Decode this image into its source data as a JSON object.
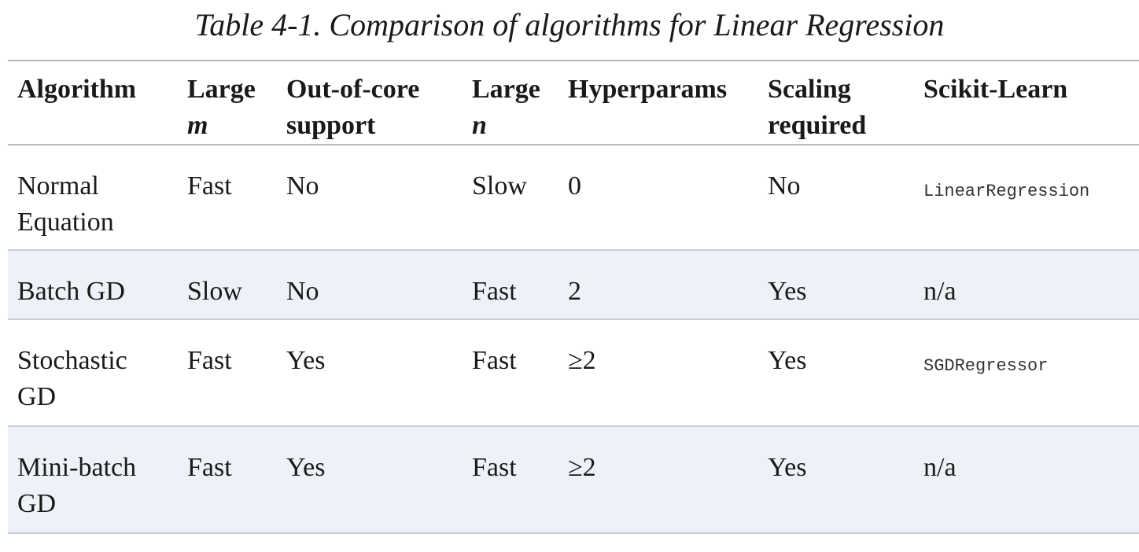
{
  "caption": "Table 4-1. Comparison of algorithms for Linear Regression",
  "headers": {
    "algorithm": "Algorithm",
    "large_m": {
      "line1": "Large",
      "line2": "m"
    },
    "out_of_core": {
      "line1": "Out-of-core",
      "line2": "support"
    },
    "large_n": {
      "line1": "Large",
      "line2": "n"
    },
    "hyperparams": "Hyperparams",
    "scaling": {
      "line1": "Scaling",
      "line2": "required"
    },
    "scikit": "Scikit-Learn"
  },
  "rows": [
    {
      "algorithm": {
        "line1": "Normal",
        "line2": "Equation"
      },
      "large_m": "Fast",
      "out_of_core": "No",
      "large_n": "Slow",
      "hyperparams": "0",
      "scaling": "No",
      "scikit": "LinearRegression"
    },
    {
      "algorithm": {
        "line1": "Batch GD",
        "line2": ""
      },
      "large_m": "Slow",
      "out_of_core": "No",
      "large_n": "Fast",
      "hyperparams": "2",
      "scaling": "Yes",
      "scikit": "n/a"
    },
    {
      "algorithm": {
        "line1": "Stochastic",
        "line2": "GD"
      },
      "large_m": "Fast",
      "out_of_core": "Yes",
      "large_n": "Fast",
      "hyperparams": "≥2",
      "scaling": "Yes",
      "scikit": "SGDRegressor"
    },
    {
      "algorithm": {
        "line1": "Mini-batch",
        "line2": "GD"
      },
      "large_m": "Fast",
      "out_of_core": "Yes",
      "large_n": "Fast",
      "hyperparams": "≥2",
      "scaling": "Yes",
      "scikit": "n/a"
    }
  ]
}
